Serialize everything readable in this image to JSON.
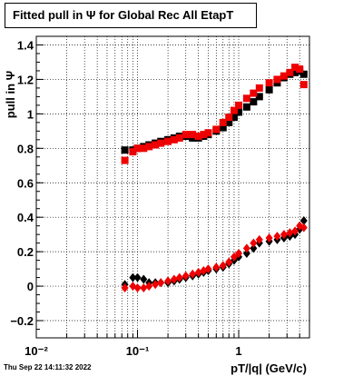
{
  "title": "Fitted pull in Ψ for Global Rec All EtapT",
  "timestamp": "Thu Sep 22 14:11:32 2022",
  "colors": {
    "black": "#000000",
    "red": "#ee0000"
  },
  "chart_data": {
    "type": "scatter",
    "title": "Fitted pull in Ψ for Global Rec All EtapT",
    "xlabel": "pT/|q| (GeV/c)",
    "ylabel": "pull in Ψ",
    "x_scale": "log",
    "xlim": [
      0.01,
      5
    ],
    "ylim": [
      -0.3,
      1.45
    ],
    "grid": true,
    "x_ticks": [
      {
        "value": 0.01,
        "label": "10⁻²"
      },
      {
        "value": 0.1,
        "label": "10⁻¹"
      },
      {
        "value": 1,
        "label": "1"
      }
    ],
    "y_ticks": [
      {
        "value": -0.2,
        "label": "−0.2"
      },
      {
        "value": 0,
        "label": "0"
      },
      {
        "value": 0.2,
        "label": "0.2"
      },
      {
        "value": 0.4,
        "label": "0.4"
      },
      {
        "value": 0.6,
        "label": "0.6"
      },
      {
        "value": 0.8,
        "label": "0.8"
      },
      {
        "value": 1,
        "label": "1"
      },
      {
        "value": 1.2,
        "label": "1.2"
      },
      {
        "value": 1.4,
        "label": "1.4"
      }
    ],
    "series": [
      {
        "marker": "square",
        "color": "black",
        "x": [
          0.075,
          0.09,
          0.1,
          0.115,
          0.13,
          0.15,
          0.17,
          0.2,
          0.23,
          0.26,
          0.3,
          0.35,
          0.4,
          0.45,
          0.5,
          0.6,
          0.7,
          0.8,
          0.9,
          1.0,
          1.2,
          1.4,
          1.6,
          2.0,
          2.4,
          2.8,
          3.2,
          3.6,
          4.0,
          4.4
        ],
        "y": [
          0.79,
          0.79,
          0.8,
          0.81,
          0.82,
          0.83,
          0.84,
          0.85,
          0.86,
          0.87,
          0.87,
          0.86,
          0.86,
          0.87,
          0.88,
          0.9,
          0.92,
          0.95,
          0.98,
          1.01,
          1.04,
          1.07,
          1.1,
          1.14,
          1.18,
          1.21,
          1.23,
          1.24,
          1.25,
          1.23
        ]
      },
      {
        "marker": "square",
        "color": "red",
        "x": [
          0.075,
          0.09,
          0.1,
          0.115,
          0.13,
          0.15,
          0.17,
          0.2,
          0.23,
          0.26,
          0.3,
          0.35,
          0.4,
          0.45,
          0.5,
          0.6,
          0.7,
          0.8,
          0.9,
          1.0,
          1.2,
          1.4,
          1.6,
          2.0,
          2.4,
          2.8,
          3.2,
          3.6,
          4.0,
          4.4
        ],
        "y": [
          0.73,
          0.78,
          0.8,
          0.8,
          0.81,
          0.82,
          0.83,
          0.84,
          0.85,
          0.86,
          0.88,
          0.88,
          0.87,
          0.88,
          0.89,
          0.91,
          0.95,
          0.98,
          1.02,
          1.05,
          1.09,
          1.12,
          1.15,
          1.18,
          1.2,
          1.22,
          1.24,
          1.27,
          1.26,
          1.17
        ]
      },
      {
        "marker": "diamond",
        "color": "black",
        "x": [
          0.075,
          0.09,
          0.1,
          0.115,
          0.13,
          0.15,
          0.17,
          0.2,
          0.23,
          0.26,
          0.3,
          0.35,
          0.4,
          0.45,
          0.5,
          0.6,
          0.7,
          0.8,
          0.9,
          1.0,
          1.2,
          1.4,
          1.6,
          2.0,
          2.4,
          2.8,
          3.2,
          3.6,
          4.0,
          4.4
        ],
        "y": [
          0.01,
          0.05,
          0.05,
          0.04,
          0.02,
          0.02,
          0.02,
          0.02,
          0.03,
          0.04,
          0.05,
          0.06,
          0.07,
          0.08,
          0.09,
          0.1,
          0.11,
          0.13,
          0.15,
          0.17,
          0.19,
          0.22,
          0.25,
          0.26,
          0.27,
          0.28,
          0.29,
          0.3,
          0.33,
          0.38
        ]
      },
      {
        "marker": "diamond",
        "color": "red",
        "x": [
          0.075,
          0.09,
          0.1,
          0.115,
          0.13,
          0.15,
          0.17,
          0.2,
          0.23,
          0.26,
          0.3,
          0.35,
          0.4,
          0.45,
          0.5,
          0.6,
          0.7,
          0.8,
          0.9,
          1.0,
          1.2,
          1.4,
          1.6,
          2.0,
          2.4,
          2.8,
          3.2,
          3.6,
          4.0,
          4.4
        ],
        "y": [
          -0.01,
          0.0,
          -0.01,
          -0.01,
          0.0,
          0.01,
          0.02,
          0.03,
          0.04,
          0.05,
          0.06,
          0.07,
          0.08,
          0.09,
          0.1,
          0.11,
          0.12,
          0.14,
          0.17,
          0.19,
          0.22,
          0.25,
          0.27,
          0.28,
          0.29,
          0.3,
          0.31,
          0.32,
          0.35,
          0.34
        ]
      }
    ]
  }
}
